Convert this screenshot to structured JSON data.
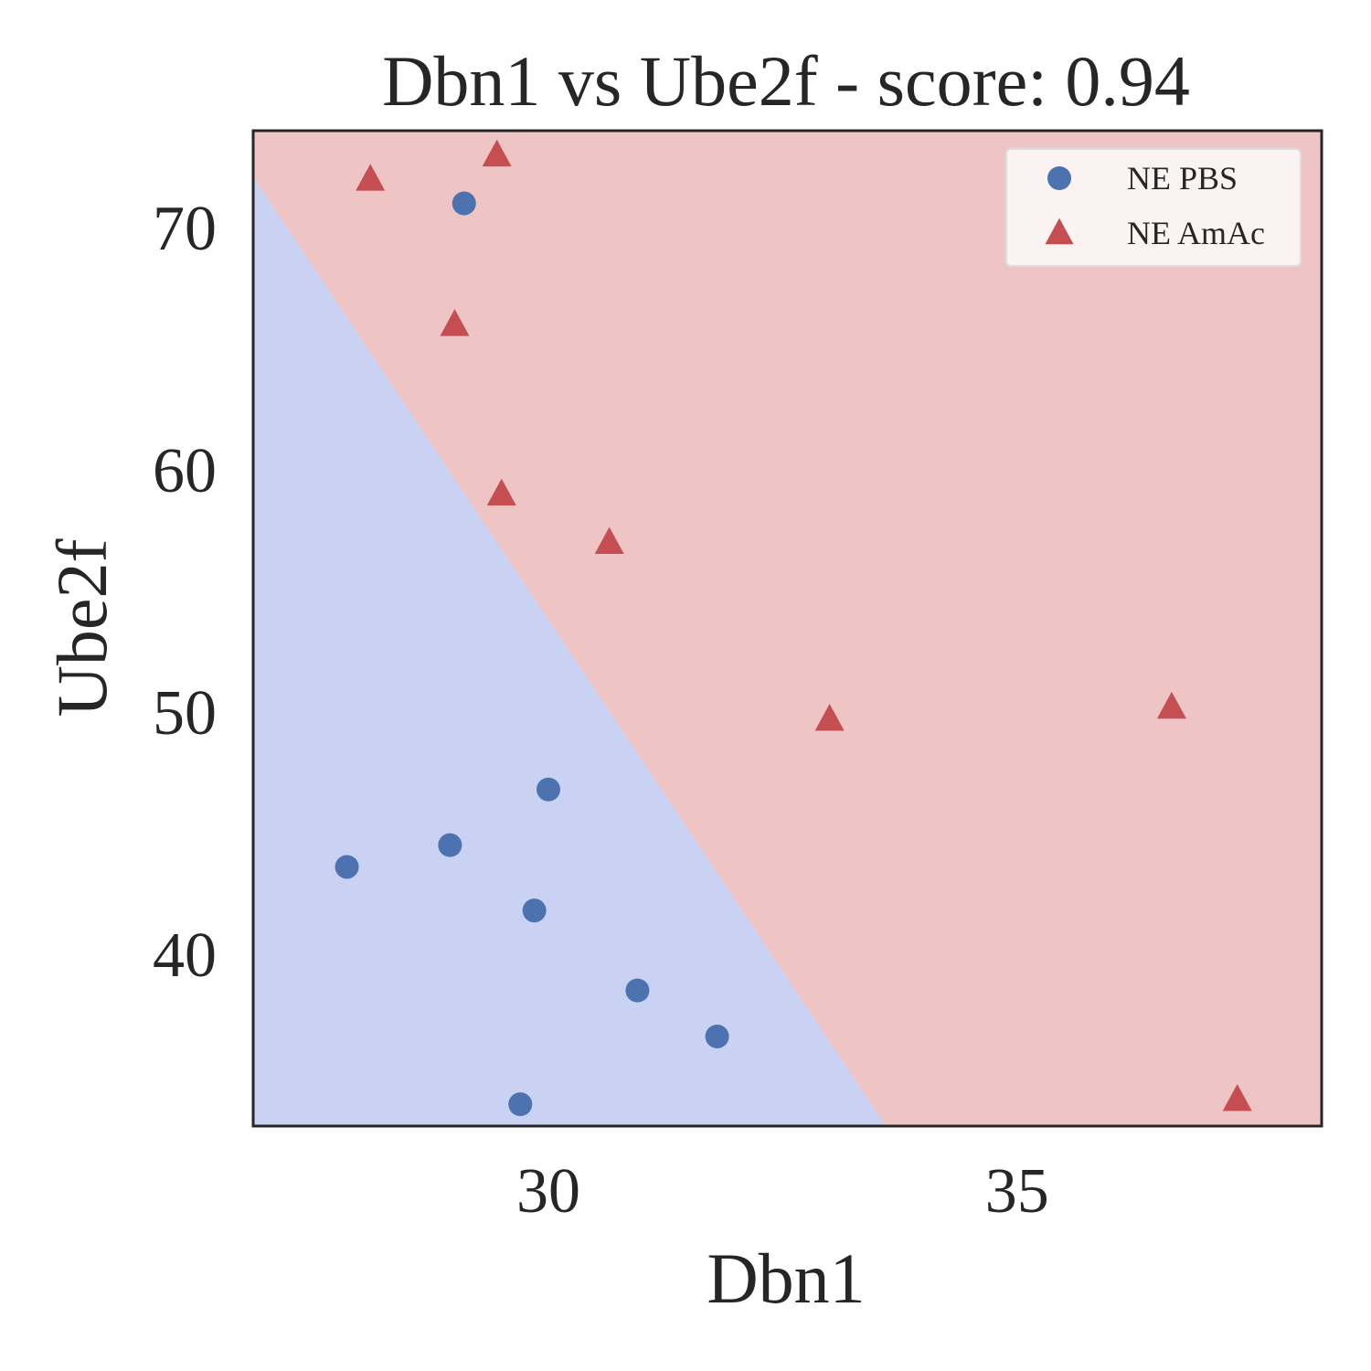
{
  "chart_data": {
    "type": "scatter",
    "title": "Dbn1 vs Ube2f - score: 0.94",
    "xlabel": "Dbn1",
    "ylabel": "Ube2f",
    "xlim": [
      26.85,
      38.25
    ],
    "ylim": [
      32.9,
      74.0
    ],
    "xticks": [
      30,
      35
    ],
    "yticks": [
      40,
      50,
      60,
      70
    ],
    "grid": false,
    "legend_position": "top-right",
    "decision_boundary": {
      "points": [
        [
          26.85,
          72.1
        ],
        [
          33.6,
          32.9
        ]
      ],
      "region_below_color": "#c9d2f2",
      "region_above_color": "#eec5c4"
    },
    "series": [
      {
        "name": "NE PBS",
        "marker": "circle",
        "color": "#4c72b0",
        "points": [
          [
            29.1,
            71.0
          ],
          [
            30.0,
            46.8
          ],
          [
            27.85,
            43.6
          ],
          [
            28.95,
            44.5
          ],
          [
            29.85,
            41.8
          ],
          [
            30.95,
            38.5
          ],
          [
            31.8,
            36.6
          ],
          [
            29.7,
            33.8
          ]
        ]
      },
      {
        "name": "NE AmAc",
        "marker": "triangle",
        "color": "#c44e52",
        "points": [
          [
            28.1,
            72.0
          ],
          [
            29.45,
            73.0
          ],
          [
            29.0,
            66.0
          ],
          [
            29.5,
            59.0
          ],
          [
            30.65,
            57.0
          ],
          [
            33.0,
            49.7
          ],
          [
            36.65,
            50.2
          ],
          [
            37.35,
            34.0
          ]
        ]
      }
    ]
  }
}
